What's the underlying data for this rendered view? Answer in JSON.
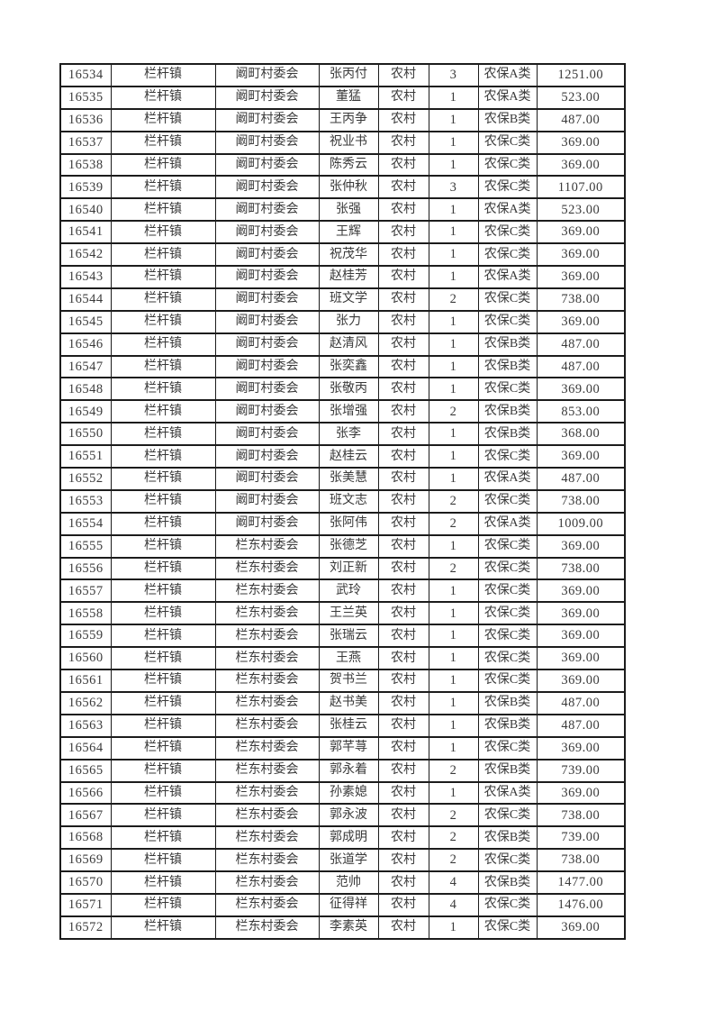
{
  "document": {
    "rows": [
      [
        "16534",
        "栏杆镇",
        "阚町村委会",
        "张丙付",
        "农村",
        "3",
        "农保A类",
        "1251.00"
      ],
      [
        "16535",
        "栏杆镇",
        "阚町村委会",
        "董猛",
        "农村",
        "1",
        "农保A类",
        "523.00"
      ],
      [
        "16536",
        "栏杆镇",
        "阚町村委会",
        "王丙争",
        "农村",
        "1",
        "农保B类",
        "487.00"
      ],
      [
        "16537",
        "栏杆镇",
        "阚町村委会",
        "祝业书",
        "农村",
        "1",
        "农保C类",
        "369.00"
      ],
      [
        "16538",
        "栏杆镇",
        "阚町村委会",
        "陈秀云",
        "农村",
        "1",
        "农保C类",
        "369.00"
      ],
      [
        "16539",
        "栏杆镇",
        "阚町村委会",
        "张仲秋",
        "农村",
        "3",
        "农保C类",
        "1107.00"
      ],
      [
        "16540",
        "栏杆镇",
        "阚町村委会",
        "张强",
        "农村",
        "1",
        "农保A类",
        "523.00"
      ],
      [
        "16541",
        "栏杆镇",
        "阚町村委会",
        "王辉",
        "农村",
        "1",
        "农保C类",
        "369.00"
      ],
      [
        "16542",
        "栏杆镇",
        "阚町村委会",
        "祝茂华",
        "农村",
        "1",
        "农保C类",
        "369.00"
      ],
      [
        "16543",
        "栏杆镇",
        "阚町村委会",
        "赵桂芳",
        "农村",
        "1",
        "农保A类",
        "369.00"
      ],
      [
        "16544",
        "栏杆镇",
        "阚町村委会",
        "班文学",
        "农村",
        "2",
        "农保C类",
        "738.00"
      ],
      [
        "16545",
        "栏杆镇",
        "阚町村委会",
        "张力",
        "农村",
        "1",
        "农保C类",
        "369.00"
      ],
      [
        "16546",
        "栏杆镇",
        "阚町村委会",
        "赵清风",
        "农村",
        "1",
        "农保B类",
        "487.00"
      ],
      [
        "16547",
        "栏杆镇",
        "阚町村委会",
        "张奕鑫",
        "农村",
        "1",
        "农保B类",
        "487.00"
      ],
      [
        "16548",
        "栏杆镇",
        "阚町村委会",
        "张敬丙",
        "农村",
        "1",
        "农保C类",
        "369.00"
      ],
      [
        "16549",
        "栏杆镇",
        "阚町村委会",
        "张增强",
        "农村",
        "2",
        "农保B类",
        "853.00"
      ],
      [
        "16550",
        "栏杆镇",
        "阚町村委会",
        "张李",
        "农村",
        "1",
        "农保B类",
        "368.00"
      ],
      [
        "16551",
        "栏杆镇",
        "阚町村委会",
        "赵桂云",
        "农村",
        "1",
        "农保C类",
        "369.00"
      ],
      [
        "16552",
        "栏杆镇",
        "阚町村委会",
        "张美慧",
        "农村",
        "1",
        "农保A类",
        "487.00"
      ],
      [
        "16553",
        "栏杆镇",
        "阚町村委会",
        "班文志",
        "农村",
        "2",
        "农保C类",
        "738.00"
      ],
      [
        "16554",
        "栏杆镇",
        "阚町村委会",
        "张阿伟",
        "农村",
        "2",
        "农保A类",
        "1009.00"
      ],
      [
        "16555",
        "栏杆镇",
        "栏东村委会",
        "张德芝",
        "农村",
        "1",
        "农保C类",
        "369.00"
      ],
      [
        "16556",
        "栏杆镇",
        "栏东村委会",
        "刘正新",
        "农村",
        "2",
        "农保C类",
        "738.00"
      ],
      [
        "16557",
        "栏杆镇",
        "栏东村委会",
        "武玲",
        "农村",
        "1",
        "农保C类",
        "369.00"
      ],
      [
        "16558",
        "栏杆镇",
        "栏东村委会",
        "王兰英",
        "农村",
        "1",
        "农保C类",
        "369.00"
      ],
      [
        "16559",
        "栏杆镇",
        "栏东村委会",
        "张瑞云",
        "农村",
        "1",
        "农保C类",
        "369.00"
      ],
      [
        "16560",
        "栏杆镇",
        "栏东村委会",
        "王燕",
        "农村",
        "1",
        "农保C类",
        "369.00"
      ],
      [
        "16561",
        "栏杆镇",
        "栏东村委会",
        "贺书兰",
        "农村",
        "1",
        "农保C类",
        "369.00"
      ],
      [
        "16562",
        "栏杆镇",
        "栏东村委会",
        "赵书美",
        "农村",
        "1",
        "农保B类",
        "487.00"
      ],
      [
        "16563",
        "栏杆镇",
        "栏东村委会",
        "张桂云",
        "农村",
        "1",
        "农保B类",
        "487.00"
      ],
      [
        "16564",
        "栏杆镇",
        "栏东村委会",
        "郭芊荨",
        "农村",
        "1",
        "农保C类",
        "369.00"
      ],
      [
        "16565",
        "栏杆镇",
        "栏东村委会",
        "郭永着",
        "农村",
        "2",
        "农保B类",
        "739.00"
      ],
      [
        "16566",
        "栏杆镇",
        "栏东村委会",
        "孙素媳",
        "农村",
        "1",
        "农保A类",
        "369.00"
      ],
      [
        "16567",
        "栏杆镇",
        "栏东村委会",
        "郭永波",
        "农村",
        "2",
        "农保C类",
        "738.00"
      ],
      [
        "16568",
        "栏杆镇",
        "栏东村委会",
        "郭成明",
        "农村",
        "2",
        "农保B类",
        "739.00"
      ],
      [
        "16569",
        "栏杆镇",
        "栏东村委会",
        "张道学",
        "农村",
        "2",
        "农保C类",
        "738.00"
      ],
      [
        "16570",
        "栏杆镇",
        "栏东村委会",
        "范帅",
        "农村",
        "4",
        "农保B类",
        "1477.00"
      ],
      [
        "16571",
        "栏杆镇",
        "栏东村委会",
        "征得祥",
        "农村",
        "4",
        "农保C类",
        "1476.00"
      ],
      [
        "16572",
        "栏杆镇",
        "栏东村委会",
        "李素英",
        "农村",
        "1",
        "农保C类",
        "369.00"
      ]
    ]
  },
  "colors": {
    "page_background": "#ffffff",
    "grid_border": "#1c1c1c",
    "text": "#3a3a3a"
  }
}
